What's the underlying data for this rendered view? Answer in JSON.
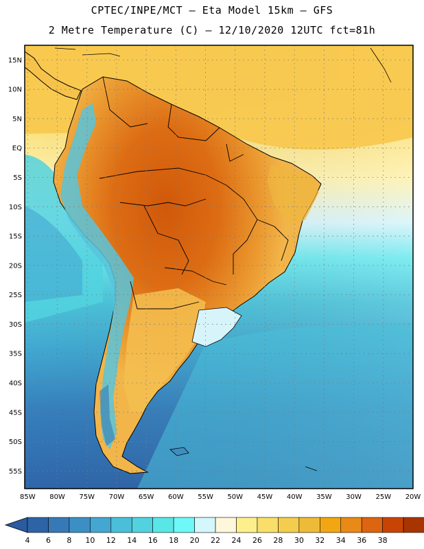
{
  "title": {
    "line1": "CPTEC/INPE/MCT –  Eta Model 15km – GFS",
    "line2": "2 Metre Temperature (C) – 12/10/2020 12UTC fct=81h"
  },
  "map": {
    "lat_labels": [
      "15N",
      "10N",
      "5N",
      "EQ",
      "5S",
      "10S",
      "15S",
      "20S",
      "25S",
      "30S",
      "35S",
      "40S",
      "45S",
      "50S",
      "55S"
    ],
    "lon_labels": [
      "85W",
      "80W",
      "75W",
      "70W",
      "65W",
      "60W",
      "55W",
      "50W",
      "45W",
      "40W",
      "35W",
      "30W",
      "25W",
      "20W"
    ],
    "extent": {
      "lon_min": -85.5,
      "lon_max": -20,
      "lat_max": 17.5,
      "lat_min": -58
    }
  },
  "colorbar": {
    "values": [
      "4",
      "6",
      "8",
      "10",
      "12",
      "14",
      "16",
      "18",
      "20",
      "22",
      "24",
      "26",
      "28",
      "30",
      "32",
      "34",
      "36",
      "38"
    ],
    "colors": [
      "#2e63a6",
      "#3779b7",
      "#3c8fc4",
      "#44a7d1",
      "#4bbfd9",
      "#52d2df",
      "#5ae6e6",
      "#6ff8f8",
      "#d4f7fb",
      "#fef7dc",
      "#fdf08c",
      "#f9df6a",
      "#f4cd4e",
      "#eebb38",
      "#f2a712",
      "#e98a18",
      "#dd6410",
      "#c84405",
      "#a83400"
    ],
    "under_color": "#2a5aa0",
    "over_color": "#b23a0c"
  },
  "colors": {
    "frame": "#000000",
    "grid": "#7a7a7a",
    "north_bg": "#f8c74a",
    "ocean_warm": "#fdea86",
    "ocean_mid": "#52d2df",
    "ocean_cold": "#3374b4",
    "land_hot": "#d76a12",
    "land_warm": "#eda23a",
    "andes": "#58c4dc"
  }
}
